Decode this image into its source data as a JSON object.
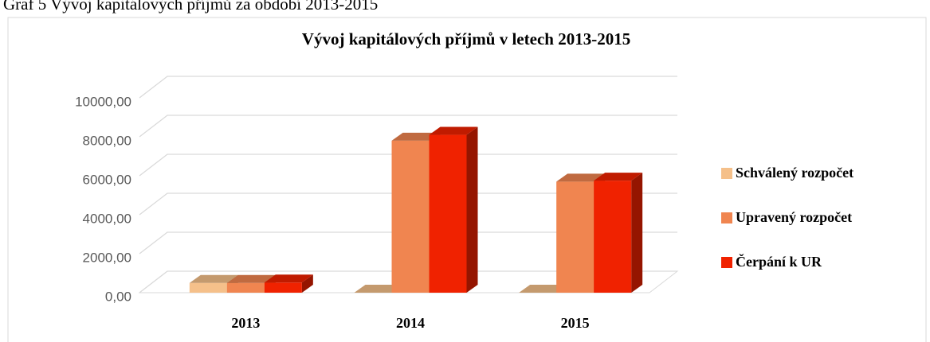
{
  "caption": "Graf 5 Vývoj kapitálových příjmů za období 2013-2015",
  "chart_data": {
    "type": "bar3d",
    "title": "Vývoj kapitálových příjmů v letech 2013-2015",
    "categories": [
      "2013",
      "2014",
      "2015"
    ],
    "series": [
      {
        "name": "Schválený rozpočet",
        "color": "#f5c08a",
        "values": [
          500,
          0,
          0
        ]
      },
      {
        "name": "Upravený rozpočet",
        "color": "#f08550",
        "values": [
          500,
          7800,
          5700
        ]
      },
      {
        "name": "Čerpání k UR",
        "color": "#f02200",
        "values": [
          520,
          8100,
          5750
        ]
      }
    ],
    "ylim": [
      0,
      10000
    ],
    "yticks": [
      {
        "value": 0,
        "label": "0,00"
      },
      {
        "value": 2000,
        "label": "2000,00"
      },
      {
        "value": 4000,
        "label": "4000,00"
      },
      {
        "value": 6000,
        "label": "6000,00"
      },
      {
        "value": 8000,
        "label": "8000,00"
      },
      {
        "value": 10000,
        "label": "10000,00"
      }
    ],
    "grid": true,
    "legend": "right"
  }
}
